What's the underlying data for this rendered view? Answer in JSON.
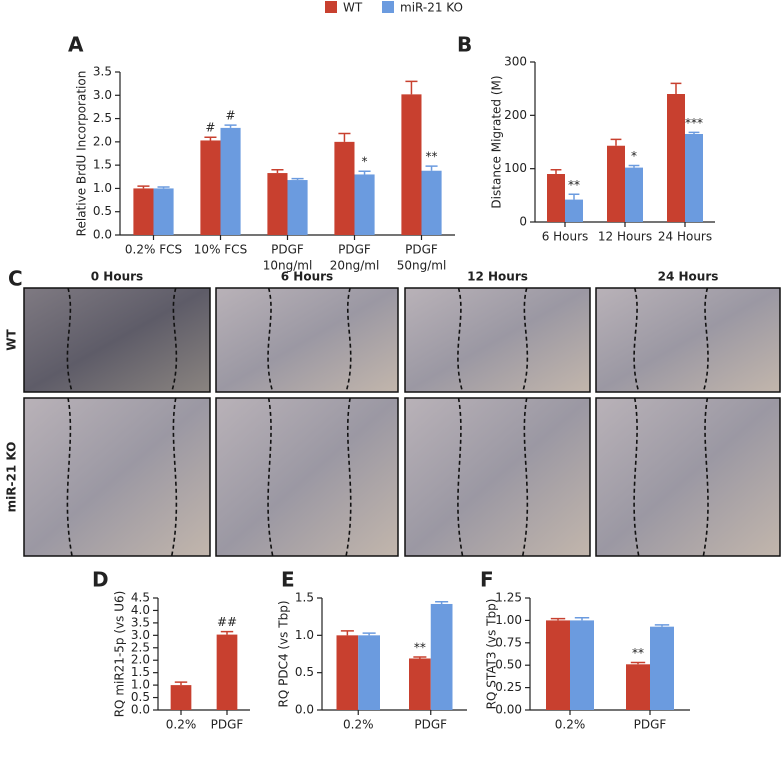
{
  "legend": [
    {
      "name": "WT",
      "color": "#c8402f"
    },
    {
      "name": "miR-21 KO",
      "color": "#6b9bdf"
    }
  ],
  "chart_data": [
    {
      "type": "bar",
      "panel": "A",
      "ylabel": "Relative BrdU Incorporation",
      "categories": [
        [
          "0.2% FCS"
        ],
        [
          "10% FCS"
        ],
        [
          "PDGF",
          "10ng/ml"
        ],
        [
          "PDGF",
          "20ng/ml"
        ],
        [
          "PDGF",
          "50ng/ml"
        ]
      ],
      "series": [
        {
          "color": "#c8402f",
          "values": [
            1.0,
            2.03,
            1.33,
            2.0,
            3.02
          ],
          "errors": [
            0.05,
            0.07,
            0.07,
            0.18,
            0.28
          ],
          "annotations": [
            null,
            "#",
            null,
            null,
            null
          ]
        },
        {
          "color": "#6b9bdf",
          "values": [
            1.0,
            2.3,
            1.18,
            1.3,
            1.38
          ],
          "errors": [
            0.03,
            0.06,
            0.03,
            0.07,
            0.1
          ],
          "annotations": [
            null,
            "#",
            null,
            "*",
            "**"
          ]
        }
      ],
      "ylim": [
        0,
        3.5
      ],
      "yticks": [
        {
          "value": 0,
          "label": "0.0"
        },
        0.5,
        {
          "value": 1,
          "label": "1.0"
        },
        1.5,
        {
          "value": 2,
          "label": "2.0"
        },
        2.5,
        {
          "value": 3,
          "label": "3.0"
        },
        3.5
      ]
    },
    {
      "type": "bar",
      "panel": "B",
      "ylabel": "Distance Migrated (M)",
      "categories": [
        [
          "6 Hours"
        ],
        [
          "12 Hours"
        ],
        [
          "24 Hours"
        ]
      ],
      "series": [
        {
          "color": "#c8402f",
          "values": [
            90,
            143,
            240
          ],
          "errors": [
            8,
            12,
            20
          ],
          "annotations": [
            null,
            null,
            null
          ]
        },
        {
          "color": "#6b9bdf",
          "values": [
            42,
            102,
            165
          ],
          "errors": [
            10,
            4,
            3
          ],
          "annotations": [
            "**",
            "*",
            "***"
          ]
        }
      ],
      "ylim": [
        0,
        300
      ],
      "yticks": [
        0,
        100,
        200,
        300
      ]
    },
    {
      "type": "bar",
      "panel": "D",
      "ylabel": "RQ miR21-5p (vs U6)",
      "categories": [
        [
          "0.2%"
        ],
        [
          "PDGF"
        ]
      ],
      "series": [
        {
          "color": "#c8402f",
          "values": [
            1.0,
            3.03
          ],
          "errors": [
            0.12,
            0.12
          ],
          "annotations": [
            null,
            "##"
          ]
        }
      ],
      "ylim": [
        0,
        4.5
      ],
      "yticks": [
        {
          "value": 0,
          "label": "0.0"
        },
        0.5,
        {
          "value": 1,
          "label": "1.0"
        },
        1.5,
        {
          "value": 2,
          "label": "2.0"
        },
        2.5,
        {
          "value": 3,
          "label": "3.0"
        },
        3.5,
        {
          "value": 4,
          "label": "4.0"
        },
        4.5
      ]
    },
    {
      "type": "bar",
      "panel": "E",
      "ylabel": "RQ PDC4 (vs Tbp)",
      "categories": [
        [
          "0.2%"
        ],
        [
          "PDGF"
        ]
      ],
      "series": [
        {
          "color": "#c8402f",
          "values": [
            1.0,
            0.69
          ],
          "errors": [
            0.06,
            0.02
          ],
          "annotations": [
            null,
            "**"
          ]
        },
        {
          "color": "#6b9bdf",
          "values": [
            1.0,
            1.42
          ],
          "errors": [
            0.03,
            0.03
          ],
          "annotations": [
            null,
            null
          ]
        }
      ],
      "ylim": [
        0,
        1.5
      ],
      "yticks": [
        {
          "value": 0,
          "label": "0.0"
        },
        0.5,
        {
          "value": 1,
          "label": "1.0"
        },
        1.5
      ]
    },
    {
      "type": "bar",
      "panel": "F",
      "ylabel": "RQ STAT3 (vs Tbp)",
      "categories": [
        [
          "0.2%"
        ],
        [
          "PDGF"
        ]
      ],
      "series": [
        {
          "color": "#c8402f",
          "values": [
            1.0,
            0.51
          ],
          "errors": [
            0.02,
            0.02
          ],
          "annotations": [
            null,
            "**"
          ]
        },
        {
          "color": "#6b9bdf",
          "values": [
            1.0,
            0.93
          ],
          "errors": [
            0.03,
            0.02
          ],
          "annotations": [
            null,
            null
          ]
        }
      ],
      "ylim": [
        0,
        1.25
      ],
      "yticks": [
        {
          "value": 0,
          "label": "0.00"
        },
        0.25,
        {
          "value": 0.5,
          "label": "0.50"
        },
        0.75,
        {
          "value": 1,
          "label": "1.00"
        },
        1.25
      ]
    }
  ],
  "image_panel": {
    "panel": "C",
    "columns": [
      "0 Hours",
      "6 Hours",
      "12 Hours",
      "24 Hours"
    ],
    "rows": [
      "WT",
      "miR-21 KO"
    ]
  }
}
